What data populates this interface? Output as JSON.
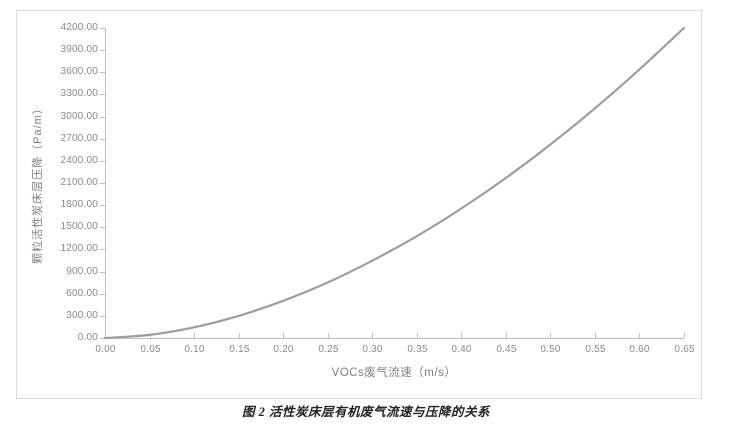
{
  "figure": {
    "caption": "图 2 活性炭床层有机废气流速与压降的关系"
  },
  "chart_data": {
    "type": "line",
    "title": "",
    "xlabel": "VOCs废气流速（m/s）",
    "ylabel": "颗粒活性炭床层压降（Pa/m）",
    "x": [
      0.0,
      0.05,
      0.1,
      0.15,
      0.2,
      0.25,
      0.3,
      0.35,
      0.4,
      0.45,
      0.5,
      0.55,
      0.6,
      0.65
    ],
    "values": [
      0,
      42,
      145,
      300,
      504,
      752,
      1047,
      1379,
      1754,
      2168,
      2621,
      3112,
      3639,
      4200
    ],
    "xlim": [
      0.0,
      0.65
    ],
    "ylim": [
      0,
      4200
    ],
    "x_tick_labels": [
      "0.00",
      "0.05",
      "0.10",
      "0.15",
      "0.20",
      "0.25",
      "0.30",
      "0.35",
      "0.40",
      "0.45",
      "0.50",
      "0.55",
      "0.60",
      "0.65"
    ],
    "y_tick_labels": [
      "0.00",
      "300.00",
      "600.00",
      "900.00",
      "1200.00",
      "1500.00",
      "1800.00",
      "2100.00",
      "2400.00",
      "2700.00",
      "3000.00",
      "3300.00",
      "3600.00",
      "3900.00",
      "4200.00"
    ],
    "grid": false,
    "legend": false,
    "marker": "none",
    "line_color": "#9d9d9d",
    "axis_color": "#bfbfbf",
    "tick_label_color": "#8a8a8a",
    "axis_title_color": "#7f7f7f",
    "frame_border_color": "#dcdcdc"
  }
}
